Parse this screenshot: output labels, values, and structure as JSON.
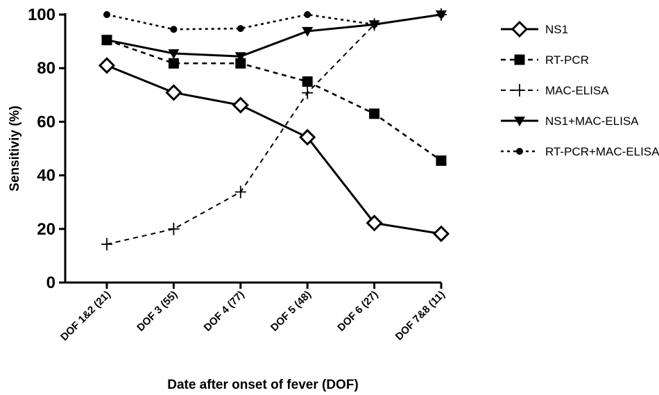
{
  "chart_data": {
    "type": "line",
    "title": "",
    "xlabel": "Date after onset of fever (DOF)",
    "ylabel": "Sensitiviy (%)",
    "categories": [
      "DOF 1&2 (21)",
      "DOF 3 (55)",
      "DOF 4 (77)",
      "DOF 5 (48)",
      "DOF 6 (27)",
      "DOF 7&8 (11)"
    ],
    "ylim": [
      0,
      100
    ],
    "yticks": [
      0,
      20,
      40,
      60,
      80,
      100
    ],
    "grid": false,
    "legend_position": "right",
    "series": [
      {
        "name": "NS1",
        "values": [
          81,
          70.9,
          66.2,
          54.2,
          22.2,
          18.2
        ],
        "line": "solid",
        "marker": "diamond-open",
        "color": "#000000"
      },
      {
        "name": "RT-PCR",
        "values": [
          90.5,
          81.8,
          81.8,
          75,
          63,
          45.5
        ],
        "line": "dashed",
        "marker": "square",
        "color": "#000000"
      },
      {
        "name": "MAC-ELISA",
        "values": [
          14.3,
          20,
          33.8,
          70.8,
          96.3,
          100
        ],
        "line": "dashdot",
        "marker": "plus",
        "color": "#000000"
      },
      {
        "name": "NS1+MAC-ELISA",
        "values": [
          90.5,
          85.5,
          84.4,
          93.8,
          96.3,
          100
        ],
        "line": "solid",
        "marker": "triangle-down",
        "color": "#000000"
      },
      {
        "name": "RT-PCR+MAC-ELISA",
        "values": [
          100,
          94.5,
          94.8,
          100,
          96.3,
          100
        ],
        "line": "dotted",
        "marker": "circle",
        "color": "#000000"
      }
    ]
  }
}
